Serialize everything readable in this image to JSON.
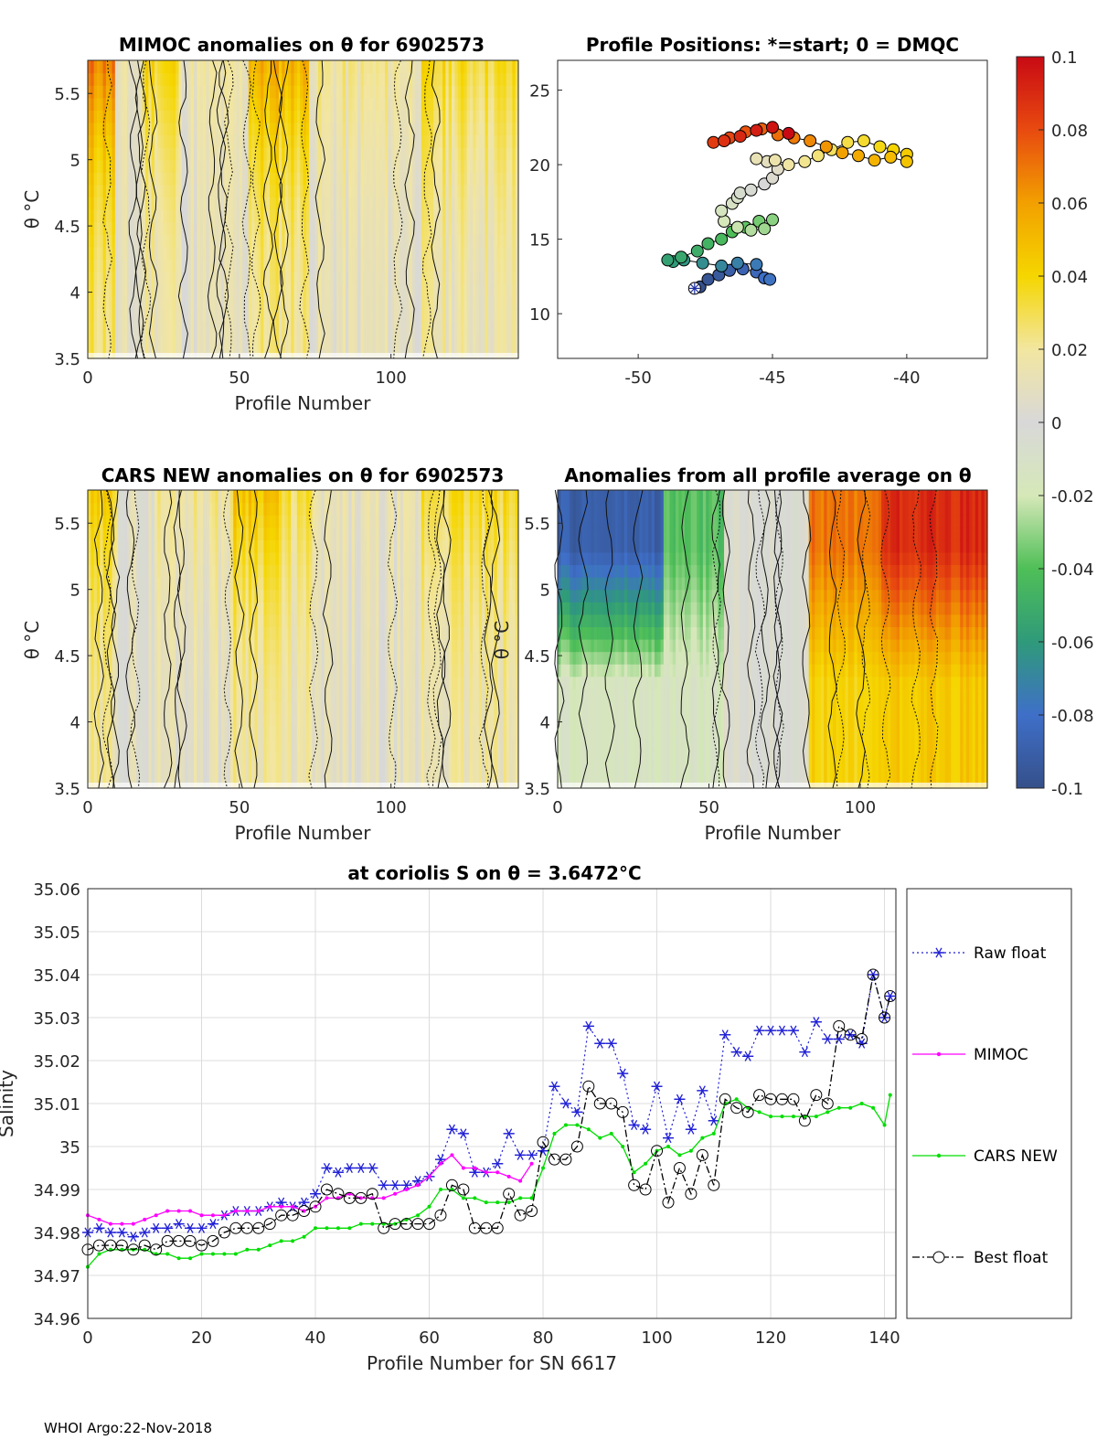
{
  "figure": {
    "footer": "WHOI Argo:22-Nov-2018"
  },
  "colorbar": {
    "ticks": [
      "0.1",
      "0.08",
      "0.06",
      "0.04",
      "0.02",
      "0",
      "-0.02",
      "-0.04",
      "-0.06",
      "-0.08",
      "-0.1"
    ],
    "range": [
      -0.1,
      0.1
    ]
  },
  "chart_data": [
    {
      "id": "mimoc",
      "type": "heatmap",
      "title": "MIMOC anomalies on θ  for 6902573",
      "xlabel": "Profile Number",
      "ylabel": "θ °C",
      "xlim": [
        0,
        142
      ],
      "ylim": [
        3.5,
        5.75
      ],
      "xticks": [
        "0",
        "50",
        "100"
      ],
      "yticks": [
        "5.5",
        "5",
        "4.5",
        "4",
        "3.5"
      ],
      "bands": [
        {
          "x": [
            0,
            9
          ],
          "value": 0.07
        },
        {
          "x": [
            9,
            18
          ],
          "value": 0.01
        },
        {
          "x": [
            18,
            30
          ],
          "value": 0.04
        },
        {
          "x": [
            30,
            53
          ],
          "value": 0.015
        },
        {
          "x": [
            53,
            73
          ],
          "value": 0.055
        },
        {
          "x": [
            73,
            110
          ],
          "value": 0.02
        },
        {
          "x": [
            110,
            142
          ],
          "value": 0.035
        }
      ]
    },
    {
      "id": "positions",
      "type": "scatter",
      "title": "Profile Positions: *=start; 0 = DMQC",
      "xlim": [
        -53,
        -37
      ],
      "ylim": [
        7,
        27
      ],
      "xticks": [
        "-50",
        "-45",
        "-40"
      ],
      "yticks": [
        "25",
        "20",
        "15",
        "10"
      ],
      "start": [
        -47.9,
        11.7
      ],
      "track": [
        [
          -47.7,
          11.8
        ],
        [
          -47.4,
          12.3
        ],
        [
          -47.0,
          12.6
        ],
        [
          -46.6,
          12.9
        ],
        [
          -46.1,
          13.0
        ],
        [
          -45.6,
          12.8
        ],
        [
          -45.3,
          12.4
        ],
        [
          -45.1,
          12.3
        ],
        [
          -45.6,
          13.3
        ],
        [
          -46.3,
          13.4
        ],
        [
          -46.9,
          13.2
        ],
        [
          -47.6,
          13.4
        ],
        [
          -48.3,
          13.6
        ],
        [
          -48.7,
          13.5
        ],
        [
          -48.9,
          13.6
        ],
        [
          -48.4,
          13.8
        ],
        [
          -47.8,
          14.2
        ],
        [
          -47.4,
          14.7
        ],
        [
          -46.9,
          15.0
        ],
        [
          -46.5,
          15.5
        ],
        [
          -46.0,
          15.8
        ],
        [
          -45.5,
          16.2
        ],
        [
          -45.0,
          16.3
        ],
        [
          -45.3,
          15.7
        ],
        [
          -45.8,
          15.6
        ],
        [
          -46.3,
          15.8
        ],
        [
          -46.8,
          16.2
        ],
        [
          -46.9,
          16.9
        ],
        [
          -46.5,
          17.4
        ],
        [
          -46.3,
          17.8
        ],
        [
          -46.2,
          18.1
        ],
        [
          -45.8,
          18.3
        ],
        [
          -45.3,
          18.7
        ],
        [
          -45.0,
          19.1
        ],
        [
          -44.8,
          19.7
        ],
        [
          -45.2,
          20.2
        ],
        [
          -45.6,
          20.4
        ],
        [
          -44.9,
          20.3
        ],
        [
          -44.4,
          20.0
        ],
        [
          -43.8,
          20.2
        ],
        [
          -43.3,
          20.6
        ],
        [
          -42.8,
          21.0
        ],
        [
          -42.2,
          21.5
        ],
        [
          -41.6,
          21.6
        ],
        [
          -41.0,
          21.2
        ],
        [
          -40.5,
          21.0
        ],
        [
          -40.0,
          20.7
        ],
        [
          -40.0,
          20.2
        ],
        [
          -40.6,
          20.5
        ],
        [
          -41.2,
          20.3
        ],
        [
          -41.8,
          20.6
        ],
        [
          -42.4,
          20.8
        ],
        [
          -43.0,
          21.2
        ],
        [
          -43.6,
          21.6
        ],
        [
          -44.2,
          21.8
        ],
        [
          -44.8,
          22.0
        ],
        [
          -45.4,
          22.4
        ],
        [
          -46.0,
          22.2
        ],
        [
          -46.6,
          21.8
        ],
        [
          -47.2,
          21.5
        ],
        [
          -46.8,
          21.6
        ],
        [
          -46.2,
          21.9
        ],
        [
          -45.6,
          22.3
        ],
        [
          -45.0,
          22.5
        ],
        [
          -44.4,
          22.1
        ]
      ],
      "dmqc": true
    },
    {
      "id": "cars",
      "type": "heatmap",
      "title": "CARS NEW anomalies on θ for 6902573",
      "xlabel": "Profile Number",
      "ylabel": "θ °C",
      "xlim": [
        0,
        142
      ],
      "ylim": [
        3.5,
        5.75
      ],
      "xticks": [
        "0",
        "50",
        "100"
      ],
      "yticks": [
        "5.5",
        "5",
        "4.5",
        "4",
        "3.5"
      ],
      "bands": [
        {
          "x": [
            0,
            10
          ],
          "value": 0.04
        },
        {
          "x": [
            10,
            22
          ],
          "value": 0.005
        },
        {
          "x": [
            22,
            48
          ],
          "value": 0.02
        },
        {
          "x": [
            48,
            63
          ],
          "value": 0.05
        },
        {
          "x": [
            63,
            75
          ],
          "value": 0.03
        },
        {
          "x": [
            75,
            110
          ],
          "value": 0.01
        },
        {
          "x": [
            110,
            142
          ],
          "value": 0.035
        }
      ]
    },
    {
      "id": "average",
      "type": "heatmap",
      "title": "Anomalies from all profile average on θ",
      "xlabel": "Profile Number",
      "ylabel": "θ °C",
      "xlim": [
        0,
        142
      ],
      "ylim": [
        3.5,
        5.75
      ],
      "xticks": [
        "0",
        "50",
        "100"
      ],
      "yticks": [
        "5.5",
        "5",
        "4.5",
        "4",
        "3.5"
      ],
      "bands": [
        {
          "x": [
            0,
            35
          ],
          "value": -0.09,
          "lower": -0.015
        },
        {
          "x": [
            35,
            55
          ],
          "value": -0.04,
          "lower": -0.015
        },
        {
          "x": [
            55,
            83
          ],
          "value": 0.0,
          "lower": 0.0
        },
        {
          "x": [
            83,
            107
          ],
          "value": 0.07,
          "lower": 0.04
        },
        {
          "x": [
            107,
            142
          ],
          "value": 0.09,
          "lower": 0.045
        }
      ]
    },
    {
      "id": "salinity",
      "type": "line",
      "title": "at coriolis S on θ = 3.6472°C",
      "xlabel": "Profile Number for SN 6617",
      "ylabel": "Salinity",
      "xlim": [
        0,
        142
      ],
      "ylim": [
        34.96,
        35.06
      ],
      "xticks": [
        "0",
        "20",
        "40",
        "60",
        "80",
        "100",
        "120",
        "140"
      ],
      "yticks": [
        "35.06",
        "35.05",
        "35.04",
        "35.03",
        "35.02",
        "35.01",
        "35",
        "34.99",
        "34.98",
        "34.97",
        "34.96"
      ],
      "x": [
        0,
        2,
        4,
        6,
        8,
        10,
        12,
        14,
        16,
        18,
        20,
        22,
        24,
        26,
        28,
        30,
        32,
        34,
        36,
        38,
        40,
        42,
        44,
        46,
        48,
        50,
        52,
        54,
        56,
        58,
        60,
        62,
        64,
        66,
        68,
        70,
        72,
        74,
        76,
        78,
        80,
        82,
        84,
        86,
        88,
        90,
        92,
        94,
        96,
        98,
        100,
        102,
        104,
        106,
        108,
        110,
        112,
        114,
        116,
        118,
        120,
        122,
        124,
        126,
        128,
        130,
        132,
        134,
        136,
        138,
        140,
        141
      ],
      "series": [
        {
          "name": "Raw float",
          "color": "#1f1fd6",
          "style": "raw",
          "values": [
            34.98,
            34.981,
            34.98,
            34.98,
            34.979,
            34.98,
            34.981,
            34.981,
            34.982,
            34.981,
            34.981,
            34.982,
            34.984,
            34.985,
            34.985,
            34.985,
            34.986,
            34.987,
            34.986,
            34.987,
            34.989,
            34.995,
            34.994,
            34.995,
            34.995,
            34.995,
            34.991,
            34.991,
            34.991,
            34.992,
            34.993,
            34.997,
            35.004,
            35.003,
            34.994,
            34.994,
            34.996,
            35.003,
            34.998,
            34.998,
            34.999,
            35.014,
            35.01,
            35.008,
            35.028,
            35.024,
            35.024,
            35.017,
            35.005,
            35.004,
            35.014,
            35.002,
            35.011,
            35.004,
            35.013,
            35.006,
            35.026,
            35.022,
            35.021,
            35.027,
            35.027,
            35.027,
            35.027,
            35.022,
            35.029,
            35.025,
            35.025,
            35.026,
            35.024,
            35.04,
            35.03,
            35.035
          ]
        },
        {
          "name": "MIMOC",
          "color": "#ff00ff",
          "style": "mimoc",
          "values": [
            34.984,
            34.983,
            34.982,
            34.982,
            34.982,
            34.983,
            34.984,
            34.985,
            34.985,
            34.985,
            34.984,
            34.984,
            34.984,
            34.985,
            34.985,
            34.985,
            34.986,
            34.986,
            34.986,
            34.985,
            34.986,
            34.988,
            34.988,
            34.989,
            34.988,
            34.988,
            34.988,
            34.989,
            34.99,
            34.991,
            34.993,
            34.996,
            34.998,
            34.995,
            34.995,
            34.994,
            34.994,
            34.993,
            34.992,
            34.996,
            null,
            null,
            null,
            null,
            null,
            null,
            null,
            null,
            null,
            null,
            null,
            null,
            null,
            null,
            null,
            null,
            null,
            null,
            null,
            null,
            null,
            null,
            null,
            null,
            null,
            null,
            null,
            null,
            null,
            null,
            null,
            null
          ]
        },
        {
          "name": "CARS NEW",
          "color": "#00dd00",
          "style": "cars",
          "values": [
            34.972,
            34.975,
            34.976,
            34.976,
            34.976,
            34.976,
            34.975,
            34.975,
            34.974,
            34.974,
            34.975,
            34.975,
            34.975,
            34.975,
            34.976,
            34.976,
            34.977,
            34.978,
            34.978,
            34.979,
            34.981,
            34.981,
            34.981,
            34.981,
            34.982,
            34.982,
            34.982,
            34.982,
            34.983,
            34.984,
            34.986,
            34.99,
            34.99,
            34.988,
            34.988,
            34.987,
            34.987,
            34.987,
            34.988,
            34.988,
            34.995,
            35.003,
            35.005,
            35.005,
            35.004,
            35.002,
            35.003,
            35.0,
            34.994,
            34.996,
            34.999,
            35.0,
            34.998,
            34.999,
            35.002,
            35.003,
            35.01,
            35.011,
            35.009,
            35.008,
            35.007,
            35.007,
            35.007,
            35.007,
            35.007,
            35.008,
            35.009,
            35.009,
            35.01,
            35.009,
            35.005,
            35.012
          ]
        },
        {
          "name": "Best float",
          "color": "#000000",
          "style": "best",
          "values": [
            34.976,
            34.977,
            34.977,
            34.977,
            34.976,
            34.977,
            34.976,
            34.978,
            34.978,
            34.978,
            34.977,
            34.978,
            34.98,
            34.981,
            34.981,
            34.981,
            34.982,
            34.984,
            34.984,
            34.985,
            34.986,
            34.99,
            34.989,
            34.988,
            34.988,
            34.989,
            34.981,
            34.982,
            34.982,
            34.982,
            34.982,
            34.984,
            34.991,
            34.99,
            34.981,
            34.981,
            34.981,
            34.989,
            34.984,
            34.985,
            35.001,
            34.997,
            34.997,
            35.0,
            35.014,
            35.01,
            35.01,
            35.008,
            34.991,
            34.99,
            34.999,
            34.987,
            34.995,
            34.989,
            34.998,
            34.991,
            35.011,
            35.009,
            35.008,
            35.012,
            35.011,
            35.011,
            35.011,
            35.006,
            35.012,
            35.01,
            35.028,
            35.026,
            35.025,
            35.04,
            35.03,
            35.035
          ]
        }
      ]
    }
  ]
}
